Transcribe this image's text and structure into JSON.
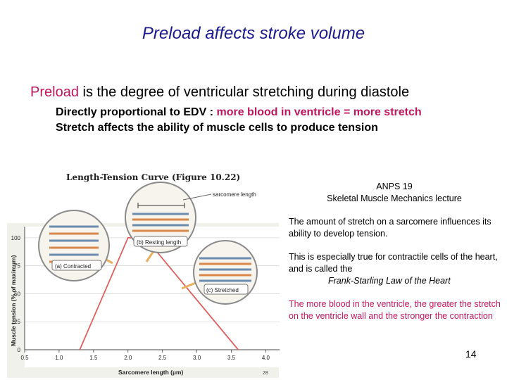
{
  "slide": {
    "title": "Preload affects stroke volume",
    "bullet1": {
      "term": "Preload",
      "rest": " is the degree of ventricular stretching during diastole"
    },
    "bullet2": {
      "prefix": "Directly proportional to EDV : ",
      "highlight": "more blood in ventricle = more stretch"
    },
    "bullet3": "Stretch affects the ability of muscle cells to produce tension",
    "reference_line1": "ANPS 19",
    "reference_line2": "Skeletal Muscle Mechanics lecture",
    "para1": "The amount of stretch on a sarcomere influences its ability to develop tension.",
    "para2_text": "This is especially true for contractile cells of the heart, and is called the",
    "para2_law": "Frank-Starling Law of the Heart",
    "para3": "The more blood in the ventricle, the greater the stretch on the ventricle wall and the stronger the contraction",
    "page_number": "14"
  },
  "figure": {
    "title": "Length-Tension Curve (Figure 10.22)",
    "sarcomere_label": "sarcomere length",
    "label_contracted": "(a) Contracted",
    "label_resting": "(b) Resting length",
    "label_stretched": "(c) Stretched",
    "figure_number": "28"
  },
  "chart_data": {
    "type": "line",
    "title": "Length-Tension Curve (Figure 10.22)",
    "xlabel": "Sarcomere length (µm)",
    "ylabel": "Muscle tension (% of maximum)",
    "xlim": [
      0.5,
      4.2
    ],
    "ylim": [
      0,
      110
    ],
    "xticks": [
      "0.5",
      "1.0",
      "1.5",
      "2.0",
      "2.5",
      "3.0",
      "3.5",
      "4.0"
    ],
    "yticks": [
      "0",
      "25",
      "50",
      "75",
      "100"
    ],
    "series": [
      {
        "x": [
          1.3,
          2.0,
          2.25,
          3.6
        ],
        "y": [
          0,
          100,
          100,
          0
        ]
      }
    ],
    "color": "#e06060"
  }
}
